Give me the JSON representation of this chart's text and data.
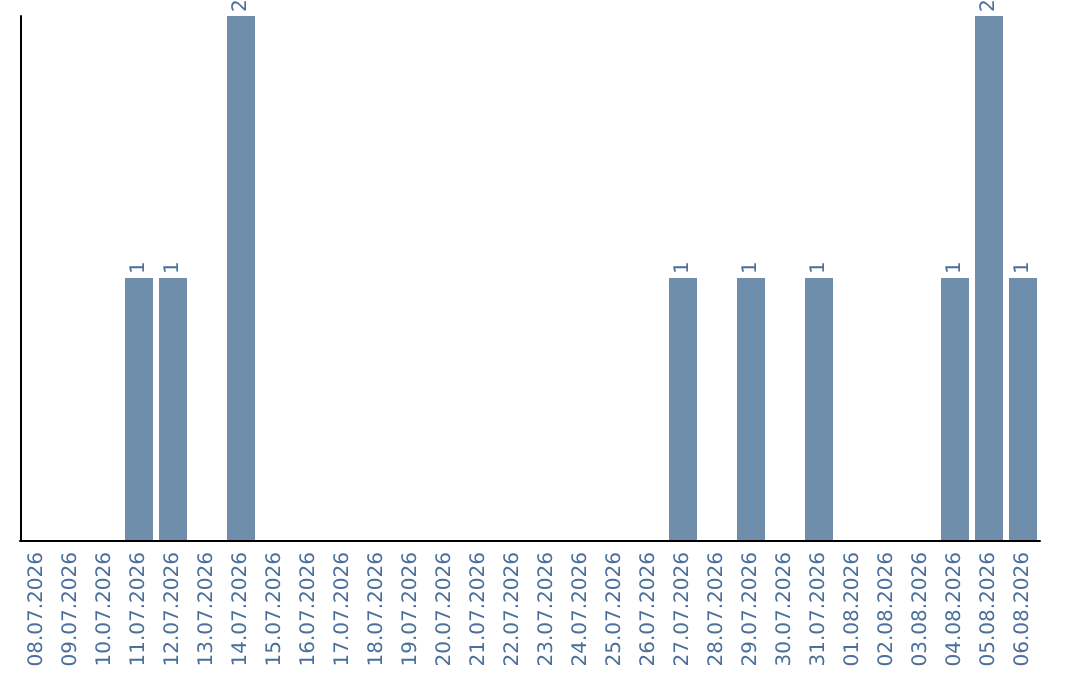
{
  "chart_data": {
    "type": "bar",
    "categories": [
      "08.07.2026",
      "09.07.2026",
      "10.07.2026",
      "11.07.2026",
      "12.07.2026",
      "13.07.2026",
      "14.07.2026",
      "15.07.2026",
      "16.07.2026",
      "17.07.2026",
      "18.07.2026",
      "19.07.2026",
      "20.07.2026",
      "21.07.2026",
      "22.07.2026",
      "23.07.2026",
      "24.07.2026",
      "25.07.2026",
      "26.07.2026",
      "27.07.2026",
      "28.07.2026",
      "29.07.2026",
      "30.07.2026",
      "31.07.2026",
      "01.08.2026",
      "02.08.2026",
      "03.08.2026",
      "04.08.2026",
      "05.08.2026",
      "06.08.2026"
    ],
    "values": [
      0,
      0,
      0,
      1,
      1,
      0,
      2,
      0,
      0,
      0,
      0,
      0,
      0,
      0,
      0,
      0,
      0,
      0,
      0,
      1,
      0,
      1,
      0,
      1,
      0,
      0,
      0,
      1,
      2,
      1
    ],
    "value_labels": [
      null,
      null,
      null,
      "1",
      "1",
      null,
      "2",
      null,
      null,
      null,
      null,
      null,
      null,
      null,
      null,
      null,
      null,
      null,
      null,
      "1",
      null,
      "1",
      null,
      "1",
      null,
      null,
      null,
      "1",
      "2",
      "1"
    ],
    "color": "#6e8eab",
    "tick_labels": "x"
  }
}
